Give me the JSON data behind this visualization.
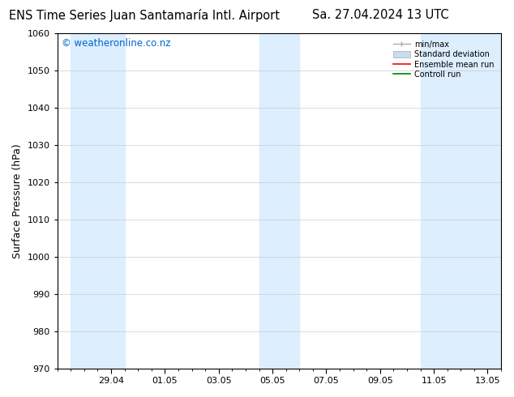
{
  "title_left": "ENS Time Series Juan Santamaría Intl. Airport",
  "title_right": "Sa. 27.04.2024 13 UTC",
  "ylabel": "Surface Pressure (hPa)",
  "ylim": [
    970,
    1060
  ],
  "yticks": [
    970,
    980,
    990,
    1000,
    1010,
    1020,
    1030,
    1040,
    1050,
    1060
  ],
  "xtick_labels": [
    "29.04",
    "01.05",
    "03.05",
    "05.05",
    "07.05",
    "09.05",
    "11.05",
    "13.05"
  ],
  "xtick_positions": [
    2,
    4,
    6,
    8,
    10,
    12,
    14,
    16
  ],
  "xlim": [
    0,
    16.5
  ],
  "shaded_bands": [
    {
      "x_start": 0.5,
      "x_end": 2.5
    },
    {
      "x_start": 7.5,
      "x_end": 9.0
    },
    {
      "x_start": 13.5,
      "x_end": 16.5
    }
  ],
  "band_color": "#ddeeff",
  "background_color": "#ffffff",
  "plot_bg_color": "#ffffff",
  "watermark_text": "© weatheronline.co.nz",
  "watermark_color": "#0066cc",
  "watermark_fontsize": 8.5,
  "title_fontsize": 10.5,
  "tick_fontsize": 8,
  "ylabel_fontsize": 9,
  "grid_color": "#cccccc",
  "minmax_color": "#aaaaaa",
  "std_color": "#c8ddf0",
  "ens_color": "#ff0000",
  "ctrl_color": "#008000"
}
